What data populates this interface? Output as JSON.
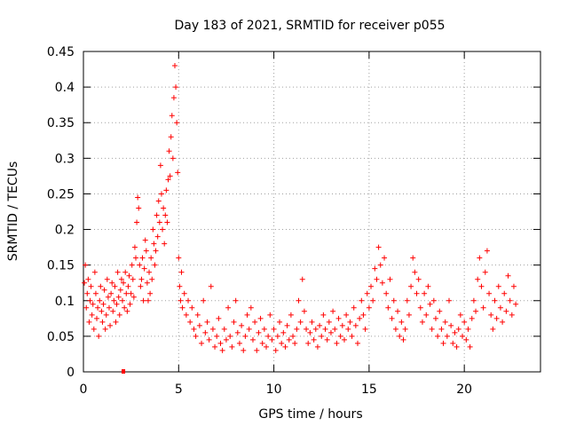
{
  "chart_data": {
    "type": "scatter",
    "title": "Day 183 of 2021, SRMTID for receiver p055",
    "xlabel": "GPS time / hours",
    "ylabel": "SRMTID / TECUs",
    "xlim": [
      0,
      24
    ],
    "ylim": [
      0,
      0.45
    ],
    "xticks": [
      0,
      5,
      10,
      15,
      20
    ],
    "yticks": [
      0,
      0.05,
      0.1,
      0.15,
      0.2,
      0.25,
      0.3,
      0.35,
      0.4,
      0.45
    ],
    "xtick_labels": [
      "0",
      "5",
      "10",
      "15",
      "20"
    ],
    "ytick_labels": [
      "0",
      "0.05",
      "0.1",
      "0.15",
      "0.2",
      "0.25",
      "0.3",
      "0.35",
      "0.4",
      "0.45"
    ],
    "grid": true,
    "marker": "plus",
    "color": "#ff0000",
    "series": [
      {
        "name": "SRMTID",
        "points": [
          [
            0.05,
            0.125
          ],
          [
            0.1,
            0.15
          ],
          [
            0.15,
            0.09
          ],
          [
            0.2,
            0.11
          ],
          [
            0.25,
            0.13
          ],
          [
            0.3,
            0.07
          ],
          [
            0.35,
            0.1
          ],
          [
            0.4,
            0.12
          ],
          [
            0.45,
            0.08
          ],
          [
            0.5,
            0.095
          ],
          [
            0.55,
            0.06
          ],
          [
            0.6,
            0.14
          ],
          [
            0.65,
            0.11
          ],
          [
            0.7,
            0.075
          ],
          [
            0.75,
            0.09
          ],
          [
            0.8,
            0.05
          ],
          [
            0.85,
            0.1
          ],
          [
            0.9,
            0.12
          ],
          [
            0.95,
            0.085
          ],
          [
            1.0,
            0.07
          ],
          [
            1.05,
            0.095
          ],
          [
            1.1,
            0.115
          ],
          [
            1.15,
            0.06
          ],
          [
            1.2,
            0.08
          ],
          [
            1.25,
            0.13
          ],
          [
            1.3,
            0.105
          ],
          [
            1.35,
            0.09
          ],
          [
            1.4,
            0.065
          ],
          [
            1.45,
            0.11
          ],
          [
            1.5,
            0.125
          ],
          [
            1.55,
            0.085
          ],
          [
            1.6,
            0.1
          ],
          [
            1.65,
            0.12
          ],
          [
            1.7,
            0.07
          ],
          [
            1.75,
            0.095
          ],
          [
            1.8,
            0.14
          ],
          [
            1.85,
            0.105
          ],
          [
            1.9,
            0.08
          ],
          [
            1.95,
            0.115
          ],
          [
            2.0,
            0.13
          ],
          [
            2.05,
            0.1
          ],
          [
            2.1,
            0.125
          ],
          [
            2.15,
            0.09
          ],
          [
            2.2,
            0.14
          ],
          [
            2.25,
            0.11
          ],
          [
            2.3,
            0.085
          ],
          [
            2.35,
            0.12
          ],
          [
            2.4,
            0.135
          ],
          [
            2.45,
            0.095
          ],
          [
            2.5,
            0.11
          ],
          [
            2.55,
            0.15
          ],
          [
            2.6,
            0.13
          ],
          [
            2.65,
            0.105
          ],
          [
            2.7,
            0.175
          ],
          [
            2.75,
            0.16
          ],
          [
            2.8,
            0.21
          ],
          [
            2.85,
            0.245
          ],
          [
            2.9,
            0.23
          ],
          [
            2.95,
            0.15
          ],
          [
            3.0,
            0.12
          ],
          [
            3.05,
            0.13
          ],
          [
            3.1,
            0.16
          ],
          [
            3.15,
            0.1
          ],
          [
            3.2,
            0.145
          ],
          [
            3.25,
            0.185
          ],
          [
            3.3,
            0.17
          ],
          [
            3.35,
            0.125
          ],
          [
            3.4,
            0.1
          ],
          [
            3.45,
            0.14
          ],
          [
            3.5,
            0.11
          ],
          [
            3.55,
            0.16
          ],
          [
            3.6,
            0.13
          ],
          [
            3.65,
            0.2
          ],
          [
            3.7,
            0.18
          ],
          [
            3.75,
            0.15
          ],
          [
            3.8,
            0.17
          ],
          [
            3.85,
            0.22
          ],
          [
            3.9,
            0.19
          ],
          [
            3.95,
            0.24
          ],
          [
            4.0,
            0.21
          ],
          [
            4.05,
            0.29
          ],
          [
            4.1,
            0.25
          ],
          [
            4.15,
            0.2
          ],
          [
            4.2,
            0.23
          ],
          [
            4.25,
            0.18
          ],
          [
            4.3,
            0.22
          ],
          [
            4.35,
            0.255
          ],
          [
            4.4,
            0.21
          ],
          [
            4.45,
            0.27
          ],
          [
            4.5,
            0.31
          ],
          [
            4.55,
            0.275
          ],
          [
            4.6,
            0.33
          ],
          [
            4.65,
            0.36
          ],
          [
            4.7,
            0.3
          ],
          [
            4.75,
            0.385
          ],
          [
            4.8,
            0.43
          ],
          [
            4.85,
            0.4
          ],
          [
            4.9,
            0.35
          ],
          [
            4.95,
            0.28
          ],
          [
            5.0,
            0.16
          ],
          [
            5.05,
            0.12
          ],
          [
            5.1,
            0.1
          ],
          [
            5.15,
            0.14
          ],
          [
            5.2,
            0.09
          ],
          [
            5.3,
            0.11
          ],
          [
            5.4,
            0.08
          ],
          [
            5.5,
            0.1
          ],
          [
            5.6,
            0.07
          ],
          [
            5.7,
            0.09
          ],
          [
            5.8,
            0.06
          ],
          [
            5.9,
            0.05
          ],
          [
            6.0,
            0.08
          ],
          [
            6.1,
            0.065
          ],
          [
            6.2,
            0.04
          ],
          [
            6.3,
            0.1
          ],
          [
            6.4,
            0.055
          ],
          [
            6.5,
            0.07
          ],
          [
            6.6,
            0.045
          ],
          [
            6.7,
            0.12
          ],
          [
            6.8,
            0.06
          ],
          [
            6.9,
            0.035
          ],
          [
            7.0,
            0.05
          ],
          [
            7.1,
            0.075
          ],
          [
            7.2,
            0.04
          ],
          [
            7.3,
            0.03
          ],
          [
            7.4,
            0.06
          ],
          [
            7.5,
            0.045
          ],
          [
            7.6,
            0.09
          ],
          [
            7.7,
            0.05
          ],
          [
            7.8,
            0.035
          ],
          [
            7.9,
            0.07
          ],
          [
            8.0,
            0.1
          ],
          [
            8.1,
            0.055
          ],
          [
            8.2,
            0.04
          ],
          [
            8.3,
            0.065
          ],
          [
            8.4,
            0.03
          ],
          [
            8.5,
            0.05
          ],
          [
            8.6,
            0.08
          ],
          [
            8.7,
            0.06
          ],
          [
            8.8,
            0.09
          ],
          [
            8.9,
            0.045
          ],
          [
            9.0,
            0.07
          ],
          [
            9.1,
            0.03
          ],
          [
            9.2,
            0.055
          ],
          [
            9.3,
            0.075
          ],
          [
            9.4,
            0.04
          ],
          [
            9.5,
            0.06
          ],
          [
            9.6,
            0.035
          ],
          [
            9.7,
            0.05
          ],
          [
            9.8,
            0.08
          ],
          [
            9.9,
            0.045
          ],
          [
            10.0,
            0.06
          ],
          [
            10.1,
            0.03
          ],
          [
            10.2,
            0.05
          ],
          [
            10.3,
            0.07
          ],
          [
            10.4,
            0.04
          ],
          [
            10.5,
            0.055
          ],
          [
            10.6,
            0.035
          ],
          [
            10.7,
            0.065
          ],
          [
            10.8,
            0.045
          ],
          [
            10.9,
            0.08
          ],
          [
            11.0,
            0.05
          ],
          [
            11.1,
            0.04
          ],
          [
            11.2,
            0.06
          ],
          [
            11.3,
            0.1
          ],
          [
            11.4,
            0.07
          ],
          [
            11.5,
            0.13
          ],
          [
            11.6,
            0.085
          ],
          [
            11.7,
            0.06
          ],
          [
            11.8,
            0.04
          ],
          [
            11.9,
            0.055
          ],
          [
            12.0,
            0.07
          ],
          [
            12.1,
            0.045
          ],
          [
            12.2,
            0.06
          ],
          [
            12.3,
            0.035
          ],
          [
            12.4,
            0.065
          ],
          [
            12.5,
            0.05
          ],
          [
            12.6,
            0.08
          ],
          [
            12.7,
            0.06
          ],
          [
            12.8,
            0.045
          ],
          [
            12.9,
            0.07
          ],
          [
            13.0,
            0.055
          ],
          [
            13.1,
            0.085
          ],
          [
            13.2,
            0.06
          ],
          [
            13.3,
            0.04
          ],
          [
            13.4,
            0.075
          ],
          [
            13.5,
            0.05
          ],
          [
            13.6,
            0.065
          ],
          [
            13.7,
            0.045
          ],
          [
            13.8,
            0.08
          ],
          [
            13.9,
            0.06
          ],
          [
            14.0,
            0.07
          ],
          [
            14.1,
            0.05
          ],
          [
            14.2,
            0.09
          ],
          [
            14.3,
            0.065
          ],
          [
            14.4,
            0.04
          ],
          [
            14.5,
            0.075
          ],
          [
            14.6,
            0.1
          ],
          [
            14.7,
            0.08
          ],
          [
            14.8,
            0.06
          ],
          [
            14.9,
            0.11
          ],
          [
            15.0,
            0.09
          ],
          [
            15.1,
            0.12
          ],
          [
            15.2,
            0.1
          ],
          [
            15.3,
            0.145
          ],
          [
            15.4,
            0.13
          ],
          [
            15.5,
            0.175
          ],
          [
            15.6,
            0.15
          ],
          [
            15.7,
            0.125
          ],
          [
            15.8,
            0.16
          ],
          [
            15.9,
            0.11
          ],
          [
            16.0,
            0.09
          ],
          [
            16.1,
            0.13
          ],
          [
            16.2,
            0.075
          ],
          [
            16.3,
            0.1
          ],
          [
            16.4,
            0.06
          ],
          [
            16.5,
            0.085
          ],
          [
            16.6,
            0.05
          ],
          [
            16.7,
            0.07
          ],
          [
            16.8,
            0.045
          ],
          [
            16.9,
            0.06
          ],
          [
            17.0,
            0.1
          ],
          [
            17.1,
            0.08
          ],
          [
            17.2,
            0.12
          ],
          [
            17.3,
            0.16
          ],
          [
            17.4,
            0.14
          ],
          [
            17.5,
            0.11
          ],
          [
            17.6,
            0.13
          ],
          [
            17.7,
            0.09
          ],
          [
            17.8,
            0.07
          ],
          [
            17.9,
            0.11
          ],
          [
            18.0,
            0.08
          ],
          [
            18.1,
            0.12
          ],
          [
            18.2,
            0.095
          ],
          [
            18.3,
            0.06
          ],
          [
            18.4,
            0.1
          ],
          [
            18.5,
            0.075
          ],
          [
            18.6,
            0.05
          ],
          [
            18.7,
            0.085
          ],
          [
            18.8,
            0.06
          ],
          [
            18.9,
            0.04
          ],
          [
            19.0,
            0.07
          ],
          [
            19.1,
            0.05
          ],
          [
            19.2,
            0.1
          ],
          [
            19.3,
            0.065
          ],
          [
            19.4,
            0.04
          ],
          [
            19.5,
            0.055
          ],
          [
            19.6,
            0.035
          ],
          [
            19.7,
            0.06
          ],
          [
            19.8,
            0.08
          ],
          [
            19.9,
            0.05
          ],
          [
            20.0,
            0.07
          ],
          [
            20.1,
            0.045
          ],
          [
            20.2,
            0.06
          ],
          [
            20.3,
            0.035
          ],
          [
            20.4,
            0.075
          ],
          [
            20.5,
            0.1
          ],
          [
            20.6,
            0.085
          ],
          [
            20.7,
            0.13
          ],
          [
            20.8,
            0.16
          ],
          [
            20.9,
            0.12
          ],
          [
            21.0,
            0.09
          ],
          [
            21.1,
            0.14
          ],
          [
            21.2,
            0.17
          ],
          [
            21.3,
            0.11
          ],
          [
            21.4,
            0.08
          ],
          [
            21.5,
            0.06
          ],
          [
            21.6,
            0.1
          ],
          [
            21.7,
            0.075
          ],
          [
            21.8,
            0.12
          ],
          [
            21.9,
            0.09
          ],
          [
            22.0,
            0.07
          ],
          [
            22.1,
            0.11
          ],
          [
            22.2,
            0.085
          ],
          [
            22.3,
            0.135
          ],
          [
            22.4,
            0.1
          ],
          [
            22.5,
            0.08
          ],
          [
            22.6,
            0.12
          ],
          [
            22.7,
            0.095
          ]
        ]
      }
    ],
    "annotations": [
      {
        "type": "marker",
        "x": 2.1,
        "y": 0,
        "shape": "square"
      }
    ]
  }
}
